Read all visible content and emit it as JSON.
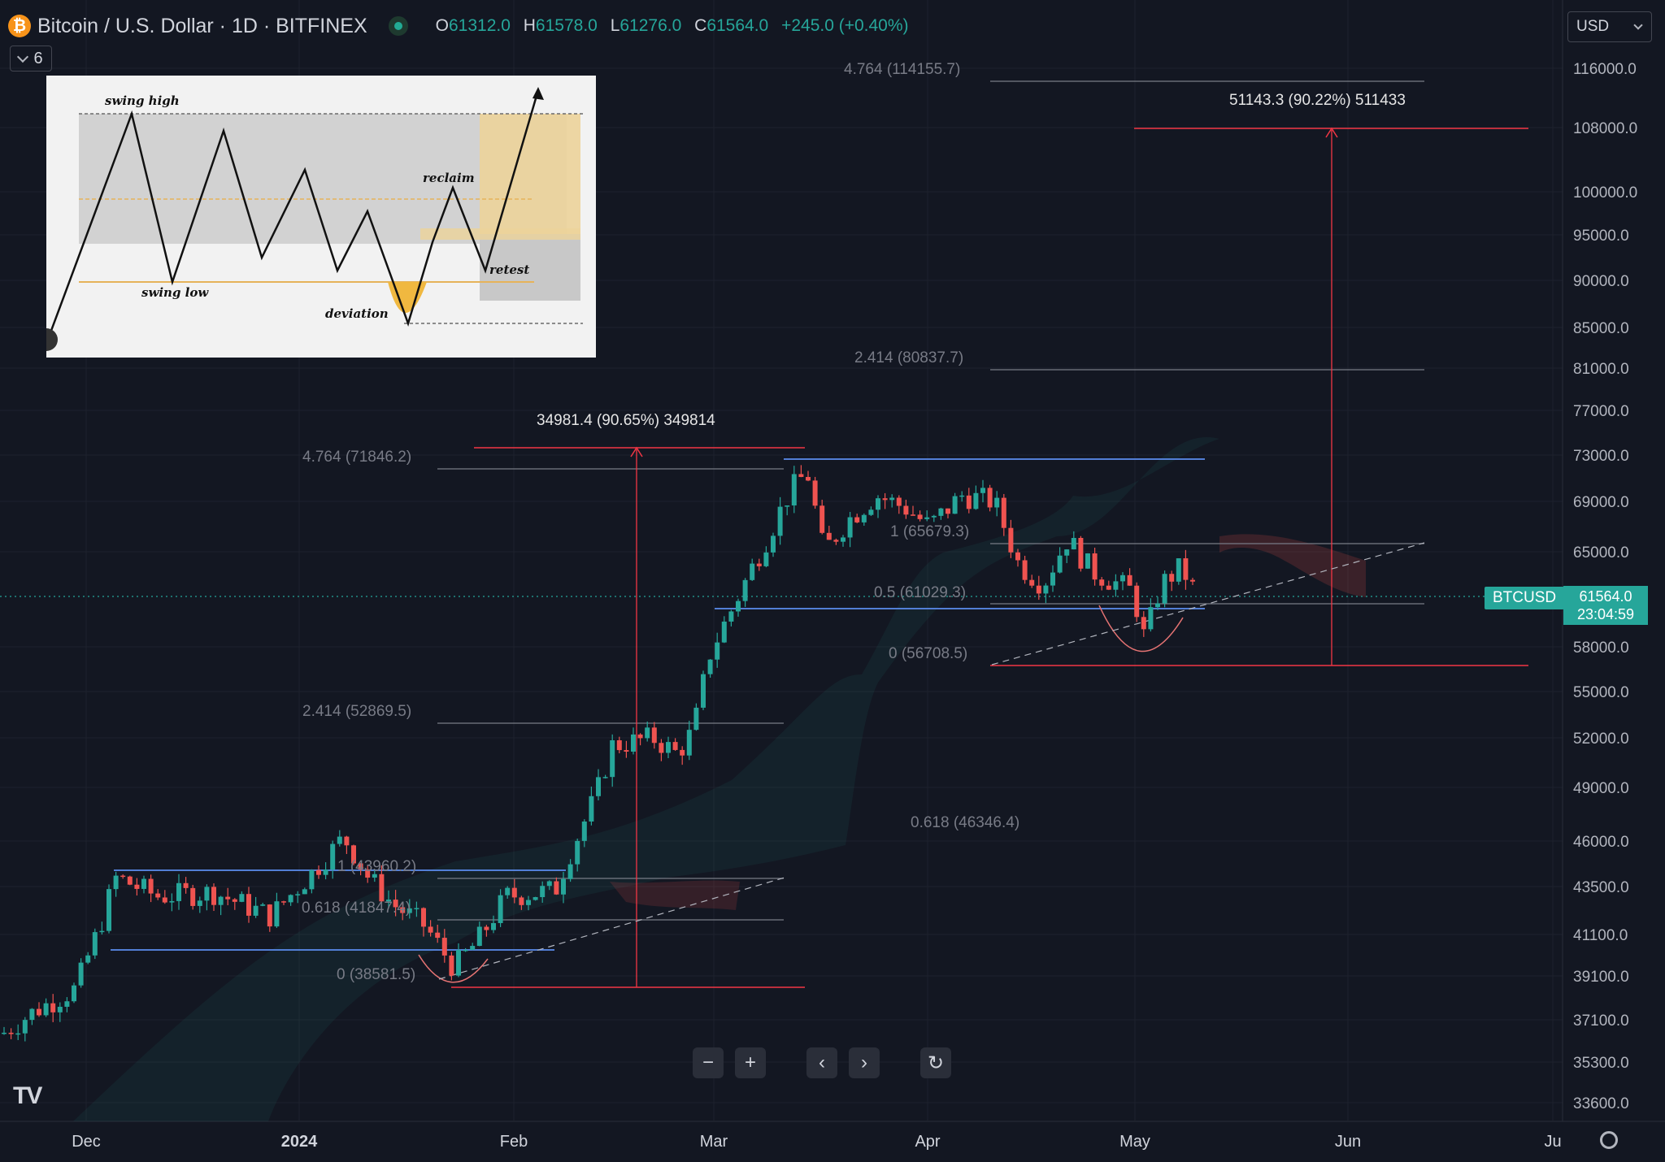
{
  "header": {
    "coin_icon": "bitcoin-icon",
    "title": "Bitcoin / U.S. Dollar · 1D · BITFINEX",
    "ohlc": [
      {
        "k": "O",
        "v": "61312.0"
      },
      {
        "k": "H",
        "v": "61578.0"
      },
      {
        "k": "L",
        "v": "61276.0"
      },
      {
        "k": "C",
        "v": "61564.0"
      }
    ],
    "change": "+245.0 (+0.40%)",
    "indicator_count": "6"
  },
  "currency": "USD",
  "price_tag": {
    "symbol": "BTCUSD",
    "price": "61564.0",
    "countdown": "23:04:59"
  },
  "price_axis": [
    "116000.0",
    "108000.0",
    "100000.0",
    "95000.0",
    "90000.0",
    "85000.0",
    "81000.0",
    "77000.0",
    "73000.0",
    "69000.0",
    "65000.0",
    "58000.0",
    "55000.0",
    "52000.0",
    "49000.0",
    "46000.0",
    "43500.0",
    "41100.0",
    "39100.0",
    "37100.0",
    "35300.0",
    "33600.0"
  ],
  "time_axis": [
    {
      "label": "Dec",
      "bold": false
    },
    {
      "label": "2024",
      "bold": true
    },
    {
      "label": "Feb",
      "bold": false
    },
    {
      "label": "Mar",
      "bold": false
    },
    {
      "label": "Apr",
      "bold": false
    },
    {
      "label": "May",
      "bold": false
    },
    {
      "label": "Jun",
      "bold": false
    },
    {
      "label": "Ju",
      "bold": false
    }
  ],
  "annotations": {
    "fib_upper": [
      "4.764 (114155.7)",
      "2.414 (80837.7)",
      "1 (65679.3)",
      "0.5 (61029.3)",
      "0 (56708.5)"
    ],
    "fib_lower": [
      "4.764 (71846.2)",
      "2.414 (52869.5)",
      "1 (43960.2)",
      "0.618 (41847.4)",
      "0 (38581.5)"
    ],
    "fib_mid_overlap": "0.618 (46346.4)",
    "measure_left": "34981.4 (90.65%) 349814",
    "measure_right": "51143.3 (90.22%) 511433"
  },
  "inset": {
    "swing_high": "swing high",
    "swing_low": "swing low",
    "reclaim": "reclaim",
    "retest": "retest",
    "deviation": "deviation"
  },
  "nav": {
    "zoom_out": "−",
    "zoom_in": "+",
    "scroll_left": "‹",
    "scroll_right": "›",
    "reset": "↻"
  },
  "logo": "TV",
  "colors": {
    "background": "#131722",
    "up": "#26a69a",
    "down": "#ef5350",
    "range_line": "#2962ff",
    "measure": "#f23645"
  }
}
